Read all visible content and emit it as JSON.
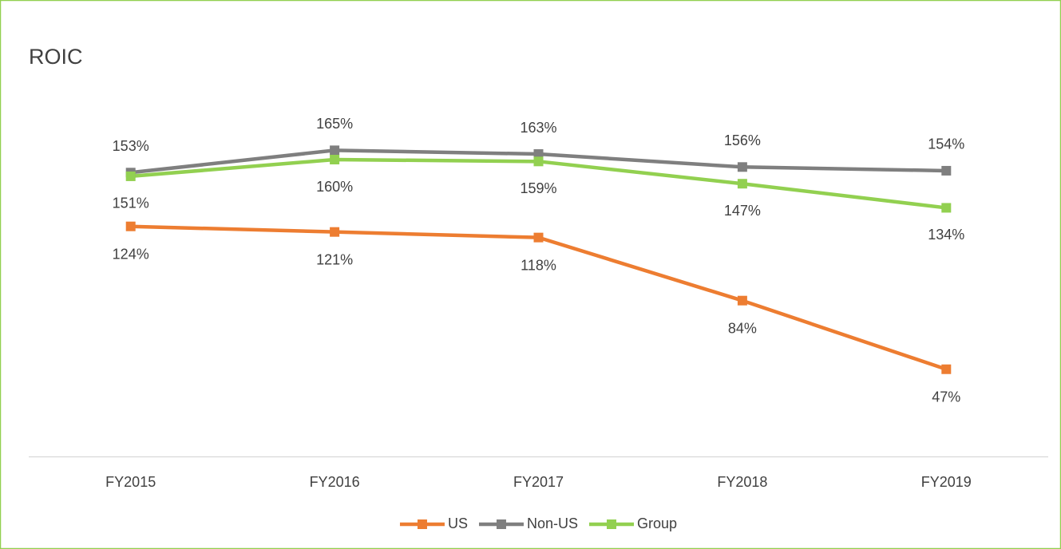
{
  "chart_data": {
    "type": "line",
    "title": "ROIC",
    "categories": [
      "FY2015",
      "FY2016",
      "FY2017",
      "FY2018",
      "FY2019"
    ],
    "series": [
      {
        "name": "US",
        "color": "#ed7d31",
        "values": [
          124,
          121,
          118,
          84,
          47
        ],
        "value_labels": [
          "124%",
          "121%",
          "118%",
          "84%",
          "47%"
        ]
      },
      {
        "name": "Non-US",
        "color": "#7f7f7f",
        "values": [
          153,
          165,
          163,
          156,
          154
        ],
        "value_labels": [
          "153%",
          "165%",
          "163%",
          "156%",
          "154%"
        ]
      },
      {
        "name": "Group",
        "color": "#92d050",
        "values": [
          151,
          160,
          159,
          147,
          134
        ],
        "value_labels": [
          "151%",
          "160%",
          "159%",
          "147%",
          "134%"
        ]
      }
    ],
    "ylim": [
      0,
      200
    ],
    "legend": "bottom"
  }
}
